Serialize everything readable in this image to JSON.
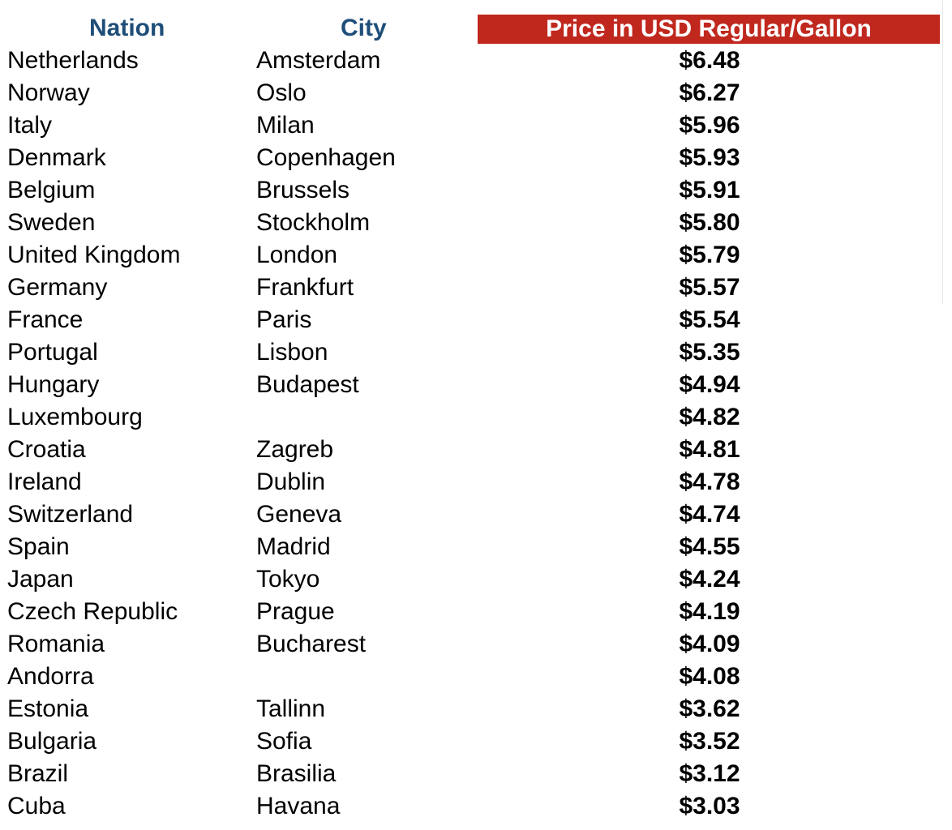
{
  "colors": {
    "header_text": "#1f4e79",
    "header_fill": "#c0281e"
  },
  "headers": {
    "nation": "Nation",
    "city": "City",
    "price": "Price in USD Regular/Gallon"
  },
  "rows": [
    {
      "nation": "Netherlands",
      "city": "Amsterdam",
      "price": "$6.48"
    },
    {
      "nation": "Norway",
      "city": "Oslo",
      "price": "$6.27"
    },
    {
      "nation": "Italy",
      "city": "Milan",
      "price": "$5.96"
    },
    {
      "nation": "Denmark",
      "city": "Copenhagen",
      "price": "$5.93"
    },
    {
      "nation": "Belgium",
      "city": "Brussels",
      "price": "$5.91"
    },
    {
      "nation": "Sweden",
      "city": "Stockholm",
      "price": "$5.80"
    },
    {
      "nation": "United Kingdom",
      "city": "London",
      "price": "$5.79"
    },
    {
      "nation": "Germany",
      "city": "Frankfurt",
      "price": "$5.57"
    },
    {
      "nation": "France",
      "city": "Paris",
      "price": "$5.54"
    },
    {
      "nation": "Portugal",
      "city": "Lisbon",
      "price": "$5.35"
    },
    {
      "nation": "Hungary",
      "city": "Budapest",
      "price": "$4.94"
    },
    {
      "nation": "Luxembourg",
      "city": "",
      "price": "$4.82"
    },
    {
      "nation": "Croatia",
      "city": "Zagreb",
      "price": "$4.81"
    },
    {
      "nation": "Ireland",
      "city": "Dublin",
      "price": "$4.78"
    },
    {
      "nation": "Switzerland",
      "city": "Geneva",
      "price": "$4.74"
    },
    {
      "nation": "Spain",
      "city": "Madrid",
      "price": "$4.55"
    },
    {
      "nation": "Japan",
      "city": "Tokyo",
      "price": "$4.24"
    },
    {
      "nation": "Czech Republic",
      "city": "Prague",
      "price": "$4.19"
    },
    {
      "nation": "Romania",
      "city": "Bucharest",
      "price": "$4.09"
    },
    {
      "nation": "Andorra",
      "city": "",
      "price": "$4.08"
    },
    {
      "nation": "Estonia",
      "city": "Tallinn",
      "price": "$3.62"
    },
    {
      "nation": "Bulgaria",
      "city": "Sofia",
      "price": "$3.52"
    },
    {
      "nation": "Brazil",
      "city": "Brasilia",
      "price": "$3.12"
    },
    {
      "nation": "Cuba",
      "city": "Havana",
      "price": "$3.03"
    }
  ]
}
